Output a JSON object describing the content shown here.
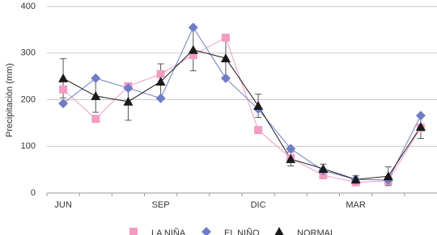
{
  "chart_data": {
    "type": "line",
    "y_label": "Precipitación (mm)",
    "categories": [
      "JUN",
      null,
      null,
      "SEP",
      null,
      null,
      "DIC",
      null,
      null,
      "MAR",
      null,
      null
    ],
    "ylim": [
      0,
      400
    ],
    "yticks": [
      0,
      100,
      200,
      300,
      400
    ],
    "grid": true,
    "legend": "bottom",
    "series": [
      {
        "name": "LA NIÑA",
        "color": "#f29cc4",
        "marker": "square",
        "values": [
          222,
          159,
          229,
          255,
          296,
          333,
          135,
          75,
          38,
          23,
          26,
          140
        ]
      },
      {
        "name": "EL NIÑO",
        "color": "#6f7dc6",
        "marker": "diamond",
        "values": [
          192,
          246,
          225,
          203,
          355,
          246,
          180,
          95,
          48,
          29,
          28,
          166
        ]
      },
      {
        "name": "NORMAL",
        "color": "#1a1a1a",
        "marker": "triangle",
        "values": [
          246,
          208,
          196,
          239,
          307,
          289,
          187,
          73,
          52,
          29,
          36,
          142
        ],
        "errors": [
          42,
          35,
          40,
          38,
          45,
          45,
          25,
          15,
          10,
          8,
          20,
          25
        ]
      }
    ]
  }
}
